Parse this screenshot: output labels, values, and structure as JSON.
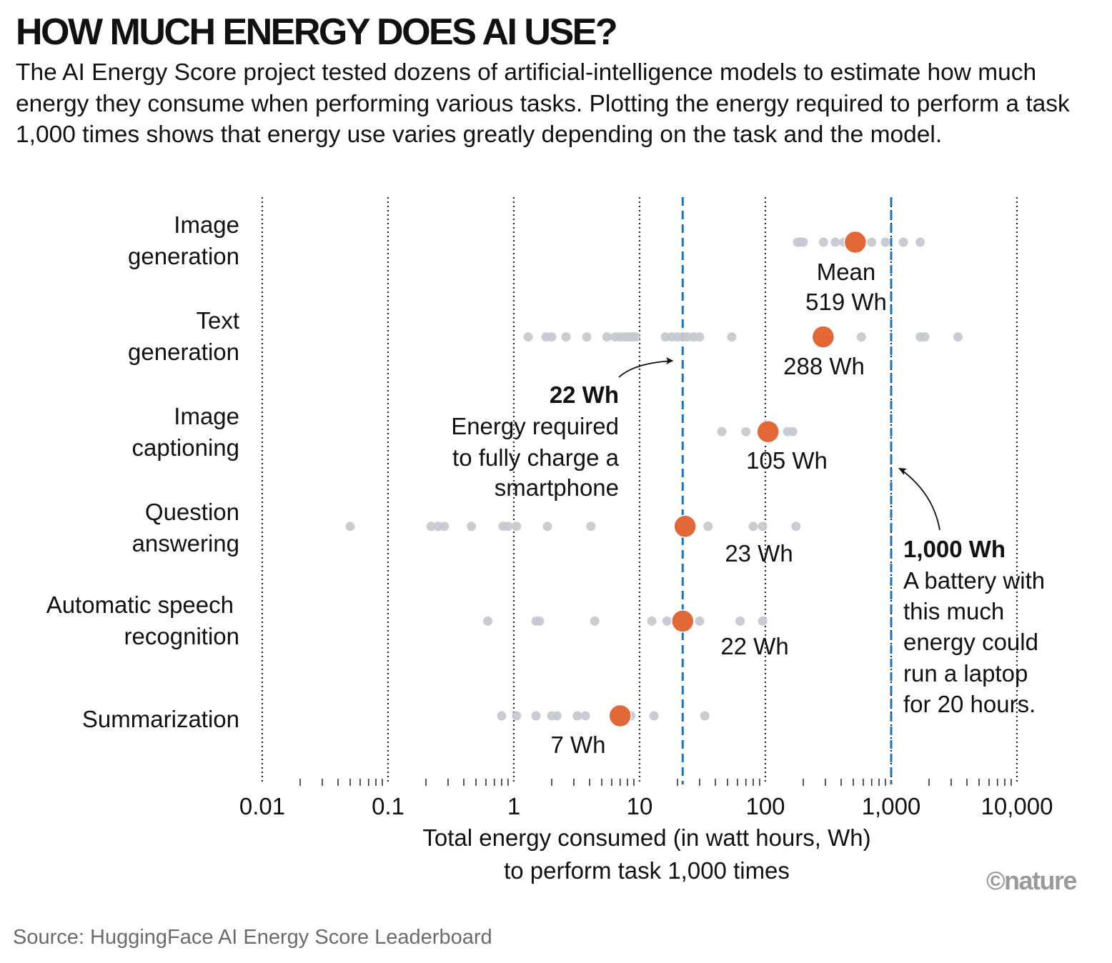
{
  "title": "HOW MUCH ENERGY DOES AI USE?",
  "subtitle": "The AI Energy Score project tested dozens of artificial-intelligence models to estimate how much energy they consume when performing various tasks. Plotting the energy required to perform a task 1,000 times shows that energy use varies greatly depending on the task and the model.",
  "source": "Source: HuggingFace AI Energy Score Leaderboard",
  "credit": "©nature",
  "colors": {
    "mean": "#e2683a",
    "model": "#c4c8cf",
    "reference": "#1f72b8",
    "grid": "#222222"
  },
  "chart_data": {
    "type": "scatter",
    "x_scale": "log",
    "xlim": [
      0.01,
      10000
    ],
    "x_ticks": [
      0.01,
      0.1,
      1,
      10,
      100,
      1000,
      10000
    ],
    "x_tick_labels": [
      "0.01",
      "0.1",
      "1",
      "10",
      "100",
      "1,000",
      "10,000"
    ],
    "xlabel": [
      "Total energy consumed (in watt hours, Wh)",
      "to perform task 1,000 times"
    ],
    "categories": [
      {
        "lines": [
          "Image",
          "generation"
        ],
        "mean": 519,
        "mean_label": [
          "Mean",
          "519 Wh"
        ],
        "models": [
          180,
          190,
          200,
          290,
          360,
          420,
          700,
          900,
          1250,
          1700
        ]
      },
      {
        "lines": [
          "Text",
          "generation"
        ],
        "mean": 288,
        "mean_label": [
          "288 Wh"
        ],
        "models": [
          1.3,
          1.8,
          2.0,
          2.6,
          3.8,
          5.5,
          6.4,
          7.0,
          7.6,
          8.2,
          8.8,
          9.3,
          16,
          18,
          20,
          22,
          24,
          27,
          30,
          54,
          580,
          1700,
          1850,
          3400
        ]
      },
      {
        "lines": [
          "Image",
          "captioning"
        ],
        "mean": 105,
        "mean_label": [
          "105 Wh"
        ],
        "models": [
          45,
          70,
          150,
          165
        ]
      },
      {
        "lines": [
          "Question",
          "answering"
        ],
        "mean": 23,
        "mean_label": [
          "23 Wh"
        ],
        "models": [
          0.05,
          0.22,
          0.25,
          0.28,
          0.46,
          0.82,
          0.9,
          1.05,
          1.85,
          4.1,
          35,
          80,
          95,
          175
        ]
      },
      {
        "lines": [
          "Automatic speech",
          "recognition"
        ],
        "mean": 22,
        "mean_label": [
          "22 Wh"
        ],
        "models": [
          0.62,
          1.5,
          1.6,
          4.4,
          12.5,
          16.5,
          30,
          63,
          95
        ]
      },
      {
        "lines": [
          "Summarization"
        ],
        "mean": 7,
        "mean_label": [
          "7 Wh"
        ],
        "models": [
          0.8,
          1.05,
          1.5,
          2.0,
          2.2,
          3.2,
          3.7,
          8.5,
          13,
          33
        ]
      }
    ],
    "reference_lines": [
      {
        "value": 22,
        "lines": [
          "22 Wh",
          "Energy required",
          "to fully charge a",
          "smartphone"
        ]
      },
      {
        "value": 1000,
        "lines": [
          "1,000 Wh",
          "A battery with",
          "this much",
          "energy could",
          "run a laptop",
          "for 20 hours."
        ]
      }
    ]
  }
}
